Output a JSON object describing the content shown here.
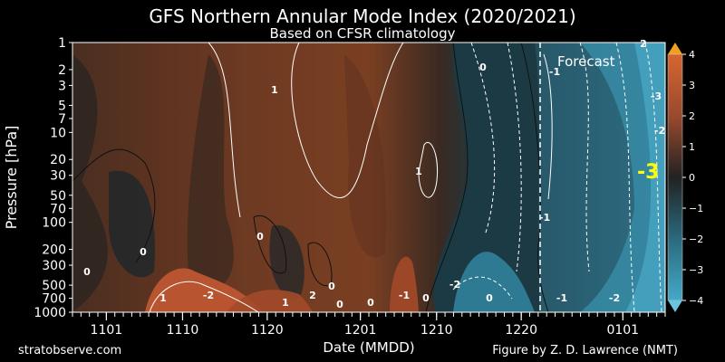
{
  "chart_data": {
    "type": "heatmap",
    "title": "GFS Northern Annular Mode Index (2020/2021)",
    "subtitle": "Based on CFSR climatology",
    "xlabel": "Date (MMDD)",
    "ylabel": "Pressure [hPa]",
    "x_tick_labels": [
      "1101",
      "1110",
      "1120",
      "1201",
      "1210",
      "1220",
      "0101"
    ],
    "y_tick_labels": [
      "1",
      "2",
      "3",
      "5",
      "7",
      "10",
      "20",
      "30",
      "50",
      "70",
      "100",
      "200",
      "300",
      "500",
      "700",
      "1000"
    ],
    "y_scale": "log",
    "ylim": [
      1000,
      1
    ],
    "colorbar": {
      "tick_labels": [
        "4",
        "3",
        "2",
        "1",
        "0",
        "−1",
        "−2",
        "−3",
        "−4"
      ],
      "min": -4,
      "max": 4,
      "positive_color": "#c8552b",
      "neutral_color": "#202020",
      "negative_color": "#3aa0c0",
      "max_color": "#f0a020"
    },
    "forecast_label": "Forecast",
    "current_value_label": "-3",
    "current_value_color": "#ffff00",
    "contour_labels": [
      "1",
      "0",
      "1",
      "1",
      "0",
      "0",
      "0",
      "-1",
      "-2",
      "0",
      "0",
      "-1",
      "-1",
      "-2",
      "-1",
      "2",
      "-2",
      "0",
      "-3",
      "1",
      "0",
      "2",
      "0",
      "-2"
    ],
    "grid": false
  },
  "footer": {
    "left": "stratobserve.com",
    "right": "Figure by Z. D. Lawrence (NMT)"
  }
}
